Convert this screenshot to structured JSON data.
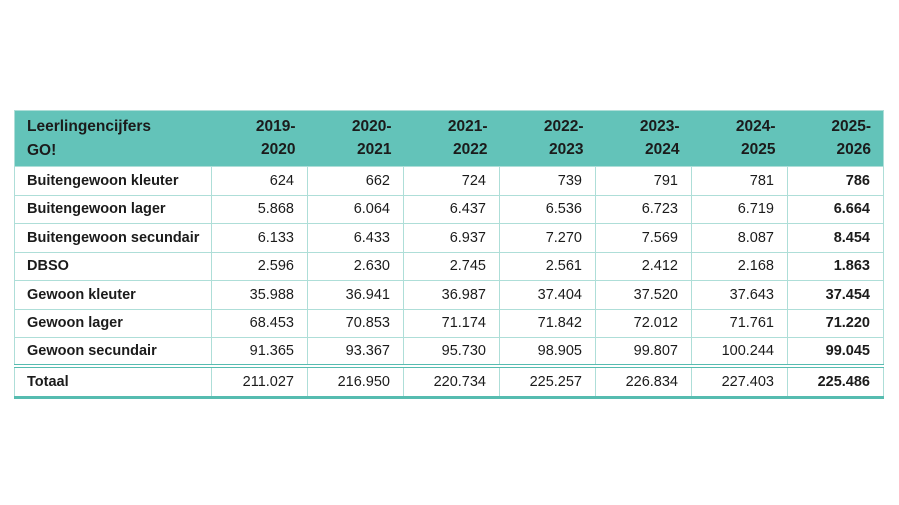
{
  "colors": {
    "header_bg": "#63c3b9",
    "border_light": "#aeded8",
    "border_strong": "#56bcb0",
    "text": "#1b1b1b",
    "page_bg": "#ffffff"
  },
  "table": {
    "title_lines": [
      "Leerlingencijfers",
      "GO!"
    ],
    "year_columns": [
      [
        "2019-",
        "2020"
      ],
      [
        "2020-",
        "2021"
      ],
      [
        "2021-",
        "2022"
      ],
      [
        "2022-",
        "2023"
      ],
      [
        "2023-",
        "2024"
      ],
      [
        "2024-",
        "2025"
      ],
      [
        "2025-",
        "2026"
      ]
    ],
    "rows": [
      {
        "label": "Buitengewoon kleuter",
        "values": [
          "624",
          "662",
          "724",
          "739",
          "791",
          "781",
          "786"
        ]
      },
      {
        "label": "Buitengewoon lager",
        "values": [
          "5.868",
          "6.064",
          "6.437",
          "6.536",
          "6.723",
          "6.719",
          "6.664"
        ]
      },
      {
        "label": "Buitengewoon secundair",
        "values": [
          "6.133",
          "6.433",
          "6.937",
          "7.270",
          "7.569",
          "8.087",
          "8.454"
        ]
      },
      {
        "label": "DBSO",
        "values": [
          "2.596",
          "2.630",
          "2.745",
          "2.561",
          "2.412",
          "2.168",
          "1.863"
        ]
      },
      {
        "label": "Gewoon kleuter",
        "values": [
          "35.988",
          "36.941",
          "36.987",
          "37.404",
          "37.520",
          "37.643",
          "37.454"
        ]
      },
      {
        "label": "Gewoon lager",
        "values": [
          "68.453",
          "70.853",
          "71.174",
          "71.842",
          "72.012",
          "71.761",
          "71.220"
        ]
      },
      {
        "label": "Gewoon secundair",
        "values": [
          "91.365",
          "93.367",
          "95.730",
          "98.905",
          "99.807",
          "100.244",
          "99.045"
        ]
      }
    ],
    "total": {
      "label": "Totaal",
      "values": [
        "211.027",
        "216.950",
        "220.734",
        "225.257",
        "226.834",
        "227.403",
        "225.486"
      ]
    }
  },
  "chart_data": {
    "type": "table",
    "title": "Leerlingencijfers GO!",
    "categories": [
      "2019-2020",
      "2020-2021",
      "2021-2022",
      "2022-2023",
      "2023-2024",
      "2024-2025",
      "2025-2026"
    ],
    "series": [
      {
        "name": "Buitengewoon kleuter",
        "values": [
          624,
          662,
          724,
          739,
          791,
          781,
          786
        ]
      },
      {
        "name": "Buitengewoon lager",
        "values": [
          5868,
          6064,
          6437,
          6536,
          6723,
          6719,
          6664
        ]
      },
      {
        "name": "Buitengewoon secundair",
        "values": [
          6133,
          6433,
          6937,
          7270,
          7569,
          8087,
          8454
        ]
      },
      {
        "name": "DBSO",
        "values": [
          2596,
          2630,
          2745,
          2561,
          2412,
          2168,
          1863
        ]
      },
      {
        "name": "Gewoon kleuter",
        "values": [
          35988,
          36941,
          36987,
          37404,
          37520,
          37643,
          37454
        ]
      },
      {
        "name": "Gewoon lager",
        "values": [
          68453,
          70853,
          71174,
          71842,
          72012,
          71761,
          71220
        ]
      },
      {
        "name": "Gewoon secundair",
        "values": [
          91365,
          93367,
          95730,
          98905,
          99807,
          100244,
          99045
        ]
      },
      {
        "name": "Totaal",
        "values": [
          211027,
          216950,
          220734,
          225257,
          226834,
          227403,
          225486
        ]
      }
    ],
    "notes": "Values shown with '.' thousands separator; the 2025-2026 column and the Totaal row are rendered bold."
  }
}
